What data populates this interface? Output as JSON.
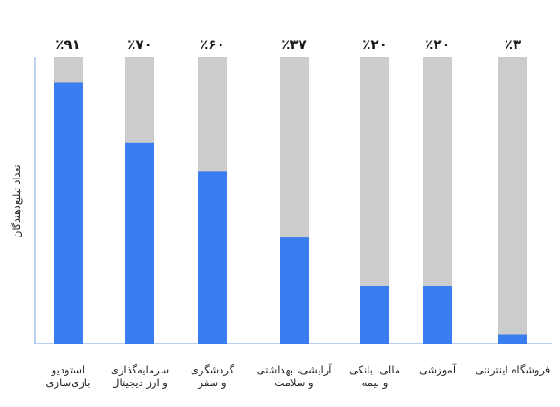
{
  "chart_data": {
    "type": "bar",
    "stacked_percent": true,
    "ylabel": "تعداد تبلیغ‌دهندگان",
    "xlabel": "",
    "title": "",
    "ylim": [
      0,
      100
    ],
    "categories": [
      [
        "استودیو",
        "بازی‌سازی"
      ],
      [
        "سرمایه‌گذاری",
        "و ارز دیجیتال"
      ],
      [
        "گردشگری",
        "و سفر"
      ],
      [
        "آرایشی، بهداشتی",
        "و سلامت"
      ],
      [
        "مالی، بانکی",
        "و بیمه"
      ],
      [
        "آموزشی"
      ],
      [
        "فروشگاه اینترنتی"
      ]
    ],
    "value_labels": [
      "٪۹۱",
      "٪۷۰",
      "٪۶۰",
      "٪۳۷",
      "٪۲۰",
      "٪۲۰",
      "٪۳"
    ],
    "values": [
      91,
      70,
      60,
      37,
      20,
      20,
      3
    ],
    "colors": {
      "value": "#3a7df0",
      "remainder": "#cccccc",
      "axis": "#8fb2ea"
    },
    "grid": false
  }
}
